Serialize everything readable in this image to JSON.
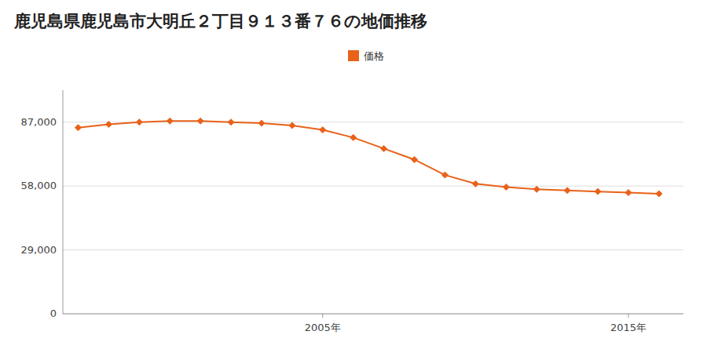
{
  "chart_data": {
    "type": "line",
    "title": "鹿児島県鹿児島市大明丘２丁目９１３番７６の地価推移",
    "x": [
      1997,
      1998,
      1999,
      2000,
      2001,
      2002,
      2003,
      2004,
      2005,
      2006,
      2007,
      2008,
      2009,
      2010,
      2011,
      2012,
      2013,
      2014,
      2015,
      2016
    ],
    "series": [
      {
        "name": "価格",
        "color": "#e8621a",
        "marker": "diamond",
        "values": [
          84500,
          86000,
          87000,
          87500,
          87500,
          87000,
          86500,
          85500,
          83500,
          80000,
          75000,
          70000,
          63000,
          59000,
          57500,
          56500,
          56000,
          55500,
          55000,
          54500
        ]
      }
    ],
    "xlim": [
      1996.5,
      2016.8
    ],
    "xticks": [
      {
        "value": 2005,
        "label": "2005年"
      },
      {
        "value": 2015,
        "label": "2015年"
      }
    ],
    "ylim": [
      0,
      101500
    ],
    "yticks": [
      0,
      {
        "value": 29000,
        "label": "29,000"
      },
      {
        "value": 58000,
        "label": "58,000"
      },
      {
        "value": 87000,
        "label": "87,000"
      }
    ],
    "grid": true,
    "legend": "top"
  }
}
